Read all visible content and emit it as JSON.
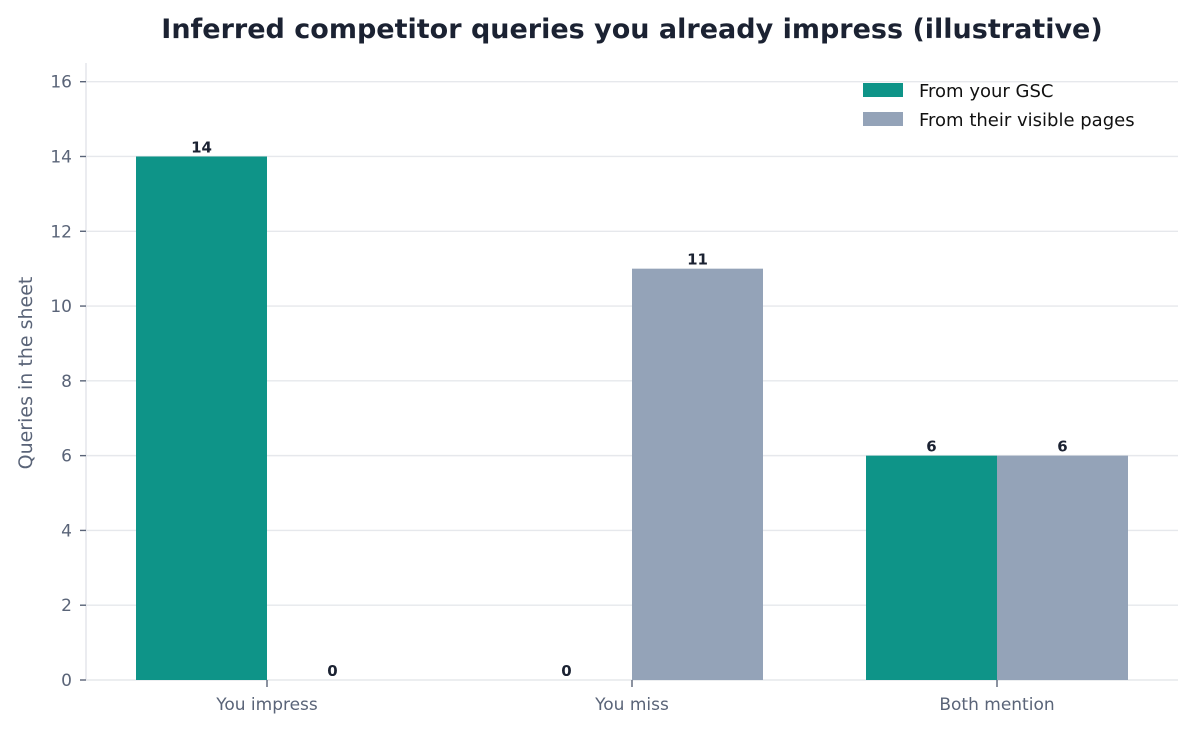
{
  "chart_data": {
    "type": "bar",
    "title": "Inferred competitor queries you already impress (illustrative)",
    "xlabel": "",
    "ylabel": "Queries in the sheet",
    "categories": [
      "You impress",
      "You miss",
      "Both mention"
    ],
    "series": [
      {
        "name": "From your GSC",
        "values": [
          14,
          0,
          6
        ],
        "color": "#0e9488"
      },
      {
        "name": "From their visible pages",
        "values": [
          0,
          11,
          6
        ],
        "color": "#94a3b8"
      }
    ],
    "ylim": [
      0,
      16.5
    ],
    "yticks": [
      0,
      2,
      4,
      6,
      8,
      10,
      12,
      14,
      16
    ],
    "grid": true,
    "legend_position": "top-right"
  }
}
